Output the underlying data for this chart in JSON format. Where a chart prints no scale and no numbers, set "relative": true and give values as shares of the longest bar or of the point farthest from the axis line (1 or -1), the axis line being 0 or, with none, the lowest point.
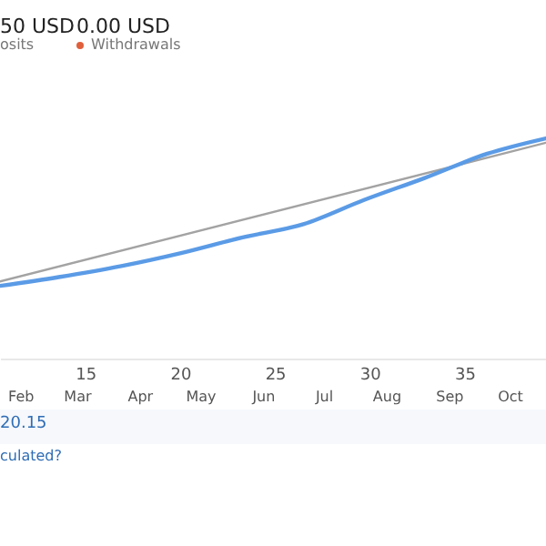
{
  "chart_data": {
    "type": "line",
    "relative": true,
    "annotations": [
      "50 USD",
      "osits",
      "0.00 USD",
      "Withdrawals",
      "20.15",
      "culated?"
    ],
    "xlim": [
      10.5,
      39.3
    ],
    "xticks": [
      15,
      20,
      25,
      30,
      35
    ],
    "x2lim": [
      "--01-22",
      "--10-19"
    ],
    "x2ticks": [
      {
        "value": "--02-01",
        "label": "Feb"
      },
      {
        "value": "--03-01",
        "label": "Mar"
      },
      {
        "value": "--04-01",
        "label": "Apr"
      },
      {
        "value": "--05-01",
        "label": "May"
      },
      {
        "value": "--06-01",
        "label": "Jun"
      },
      {
        "value": "--07-01",
        "label": "Jul"
      },
      {
        "value": "--08-01",
        "label": "Aug"
      },
      {
        "value": "--09-01",
        "label": "Sep"
      },
      {
        "value": "--10-01",
        "label": "Oct"
      }
    ],
    "series": [
      {
        "color": "#a3a3a3",
        "x": [
          10.5,
          39.3
        ],
        "values": [
          0.35,
          0.98
        ]
      },
      {
        "color": "#5b9be6",
        "x": [
          10.5,
          13.6,
          16.9,
          20.1,
          23.3,
          26.5,
          29.7,
          32.9,
          36.2,
          39.3
        ],
        "values": [
          0.33,
          0.37,
          0.42,
          0.48,
          0.55,
          0.61,
          0.72,
          0.82,
          0.93,
          1
        ]
      }
    ]
  }
}
